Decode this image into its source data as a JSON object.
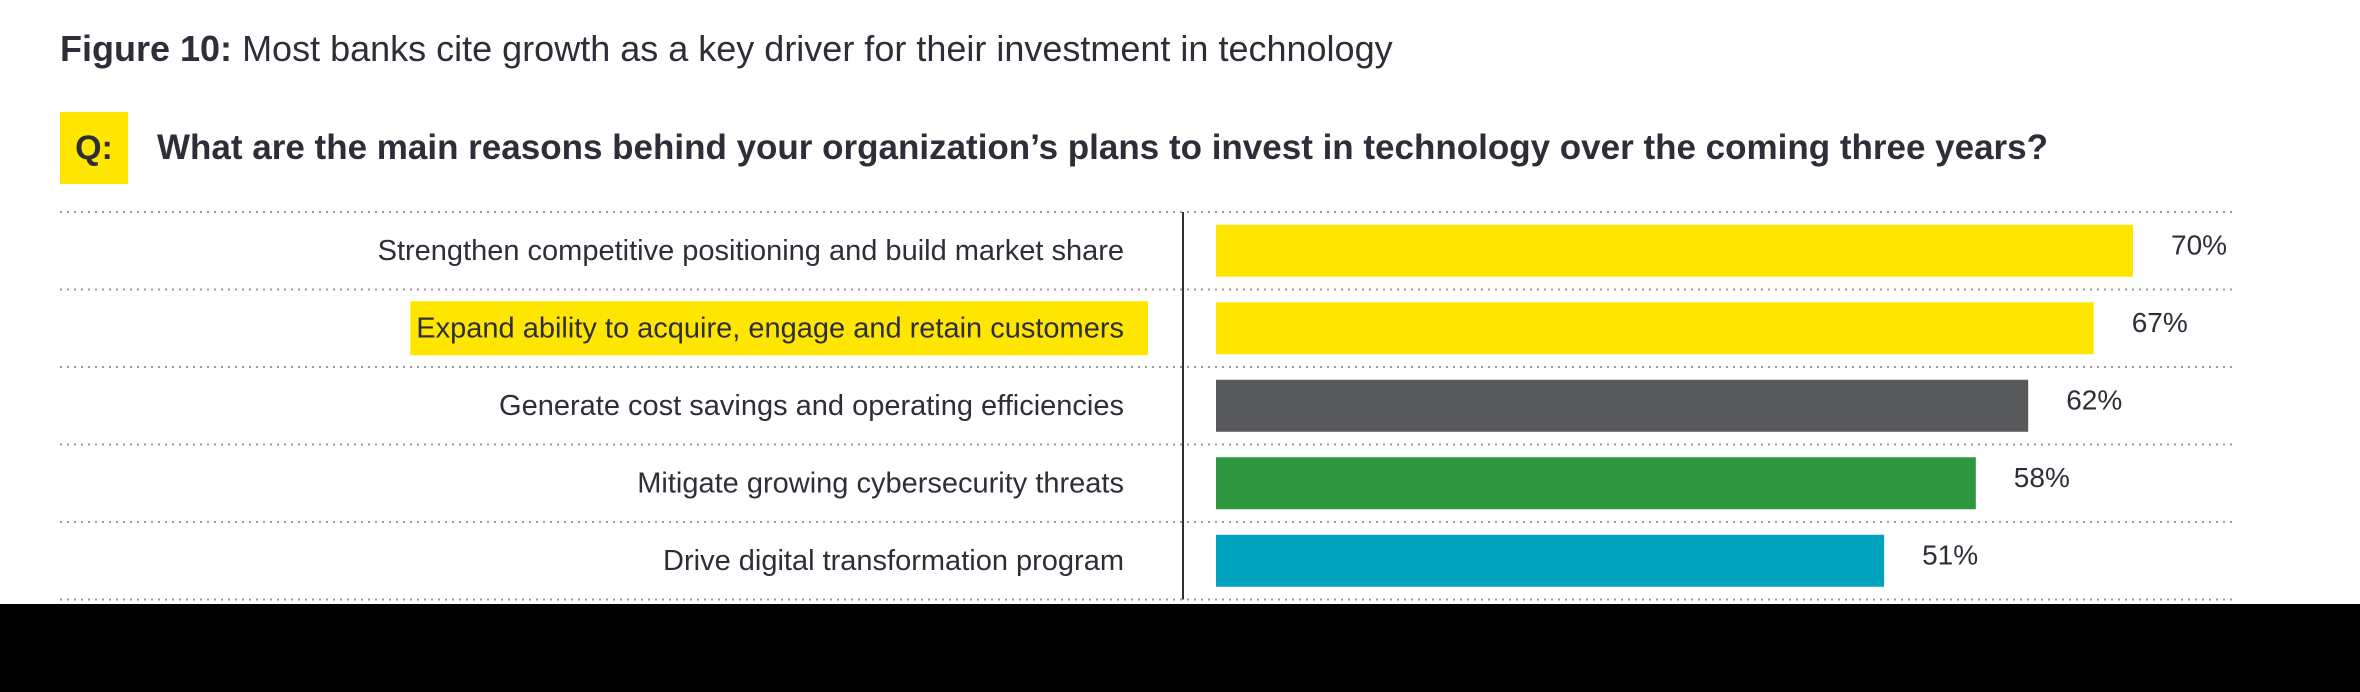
{
  "figure": {
    "label": "Figure 10:",
    "title": "Most banks cite growth as a key driver for their investment in technology"
  },
  "question": {
    "tag": "Q:",
    "text": "What are the main reasons behind your organization’s plans to invest in technology over the coming three years?"
  },
  "colors": {
    "yellow": "#ffe600",
    "gray": "#58595b",
    "green": "#2c973e",
    "teal": "#00a3be",
    "text": "#2e2e38"
  },
  "chart_data": {
    "type": "bar",
    "orientation": "horizontal",
    "categories": [
      "Strengthen competitive positioning and build market share",
      "Expand ability to acquire, engage and retain customers",
      "Generate cost savings and operating efficiencies",
      "Mitigate growing cybersecurity threats",
      "Drive digital transformation program"
    ],
    "values": [
      70,
      67,
      62,
      58,
      51
    ],
    "value_labels": [
      "70%",
      "67%",
      "62%",
      "58%",
      "51%"
    ],
    "bar_colors": [
      "#ffe600",
      "#ffe600",
      "#58595b",
      "#2c973e",
      "#00a3be"
    ],
    "highlighted_category": "Expand ability to acquire, engage and retain customers",
    "unit": "%",
    "xlim": [
      0,
      100
    ],
    "grid": "dotted row separators",
    "legend": "none"
  }
}
